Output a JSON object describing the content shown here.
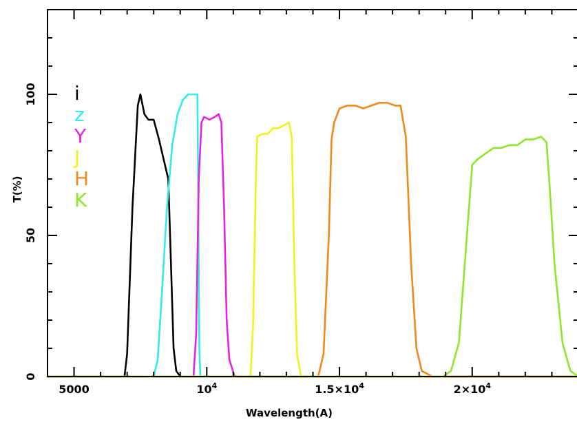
{
  "chart_data": {
    "type": "line",
    "title": "",
    "xlabel": "Wavelength(A)",
    "ylabel": "T(%)",
    "xlim": [
      4000,
      24000
    ],
    "ylim": [
      0,
      130
    ],
    "x_ticks": [
      {
        "value": 5000,
        "label": "5000"
      },
      {
        "value": 10000,
        "mantissa": "10",
        "exponent": "4"
      },
      {
        "value": 15000,
        "mantissa": "1.5×10",
        "exponent": "4"
      },
      {
        "value": 20000,
        "mantissa": "2×10",
        "exponent": "4"
      }
    ],
    "y_ticks": [
      {
        "value": 0,
        "label": "0"
      },
      {
        "value": 50,
        "label": "50"
      },
      {
        "value": 100,
        "label": "100"
      }
    ],
    "legend_position": "top-left",
    "series": [
      {
        "name": "i",
        "color": "#000000",
        "x": [
          4000,
          6900,
          7000,
          7200,
          7400,
          7500,
          7650,
          7800,
          8000,
          8200,
          8400,
          8550,
          8650,
          8750,
          8850,
          9000,
          24000
        ],
        "y": [
          0,
          0,
          8,
          60,
          96,
          100,
          93,
          91,
          91,
          84,
          76,
          70,
          40,
          10,
          2,
          0,
          0
        ]
      },
      {
        "name": "z",
        "color": "#33eaea",
        "x": [
          4000,
          8000,
          8150,
          8300,
          8500,
          8700,
          8900,
          9100,
          9300,
          9500,
          9650,
          9680,
          9720,
          9760,
          24000
        ],
        "y": [
          0,
          0,
          6,
          28,
          60,
          82,
          93,
          98,
          100,
          100,
          100,
          60,
          10,
          0,
          0
        ]
      },
      {
        "name": "Y",
        "color": "#e822e2",
        "x": [
          4000,
          9500,
          9600,
          9700,
          9800,
          9900,
          10100,
          10300,
          10450,
          10550,
          10650,
          10750,
          10850,
          11050,
          24000
        ],
        "y": [
          0,
          0,
          15,
          70,
          90,
          92,
          91,
          92,
          93,
          90,
          60,
          20,
          6,
          0,
          0
        ]
      },
      {
        "name": "J",
        "color": "#f2f21a",
        "x": [
          4000,
          11650,
          11750,
          11850,
          11900,
          12100,
          12300,
          12500,
          12700,
          12900,
          13100,
          13200,
          13300,
          13400,
          13550,
          24000
        ],
        "y": [
          0,
          0,
          20,
          70,
          85,
          86,
          86,
          88,
          88,
          89,
          90,
          85,
          40,
          8,
          0,
          0
        ]
      },
      {
        "name": "H",
        "color": "#ee8a1a",
        "x": [
          4000,
          14200,
          14400,
          14600,
          14700,
          14800,
          15000,
          15300,
          15600,
          15900,
          16200,
          16500,
          16800,
          17100,
          17300,
          17500,
          17700,
          17900,
          18100,
          18500,
          24000
        ],
        "y": [
          0,
          0,
          8,
          50,
          84,
          90,
          95,
          96,
          96,
          95,
          96,
          97,
          97,
          96,
          96,
          85,
          40,
          10,
          2,
          0,
          0
        ]
      },
      {
        "name": "K",
        "color": "#8ee62a",
        "x": [
          4000,
          18900,
          19200,
          19500,
          19800,
          20000,
          20200,
          20500,
          20800,
          21100,
          21400,
          21700,
          22000,
          22300,
          22600,
          22800,
          22900,
          23100,
          23400,
          23700,
          24000
        ],
        "y": [
          0,
          0,
          2,
          12,
          50,
          75,
          77,
          79,
          81,
          81,
          82,
          82,
          84,
          84,
          85,
          83,
          70,
          40,
          12,
          2,
          0
        ]
      }
    ]
  }
}
